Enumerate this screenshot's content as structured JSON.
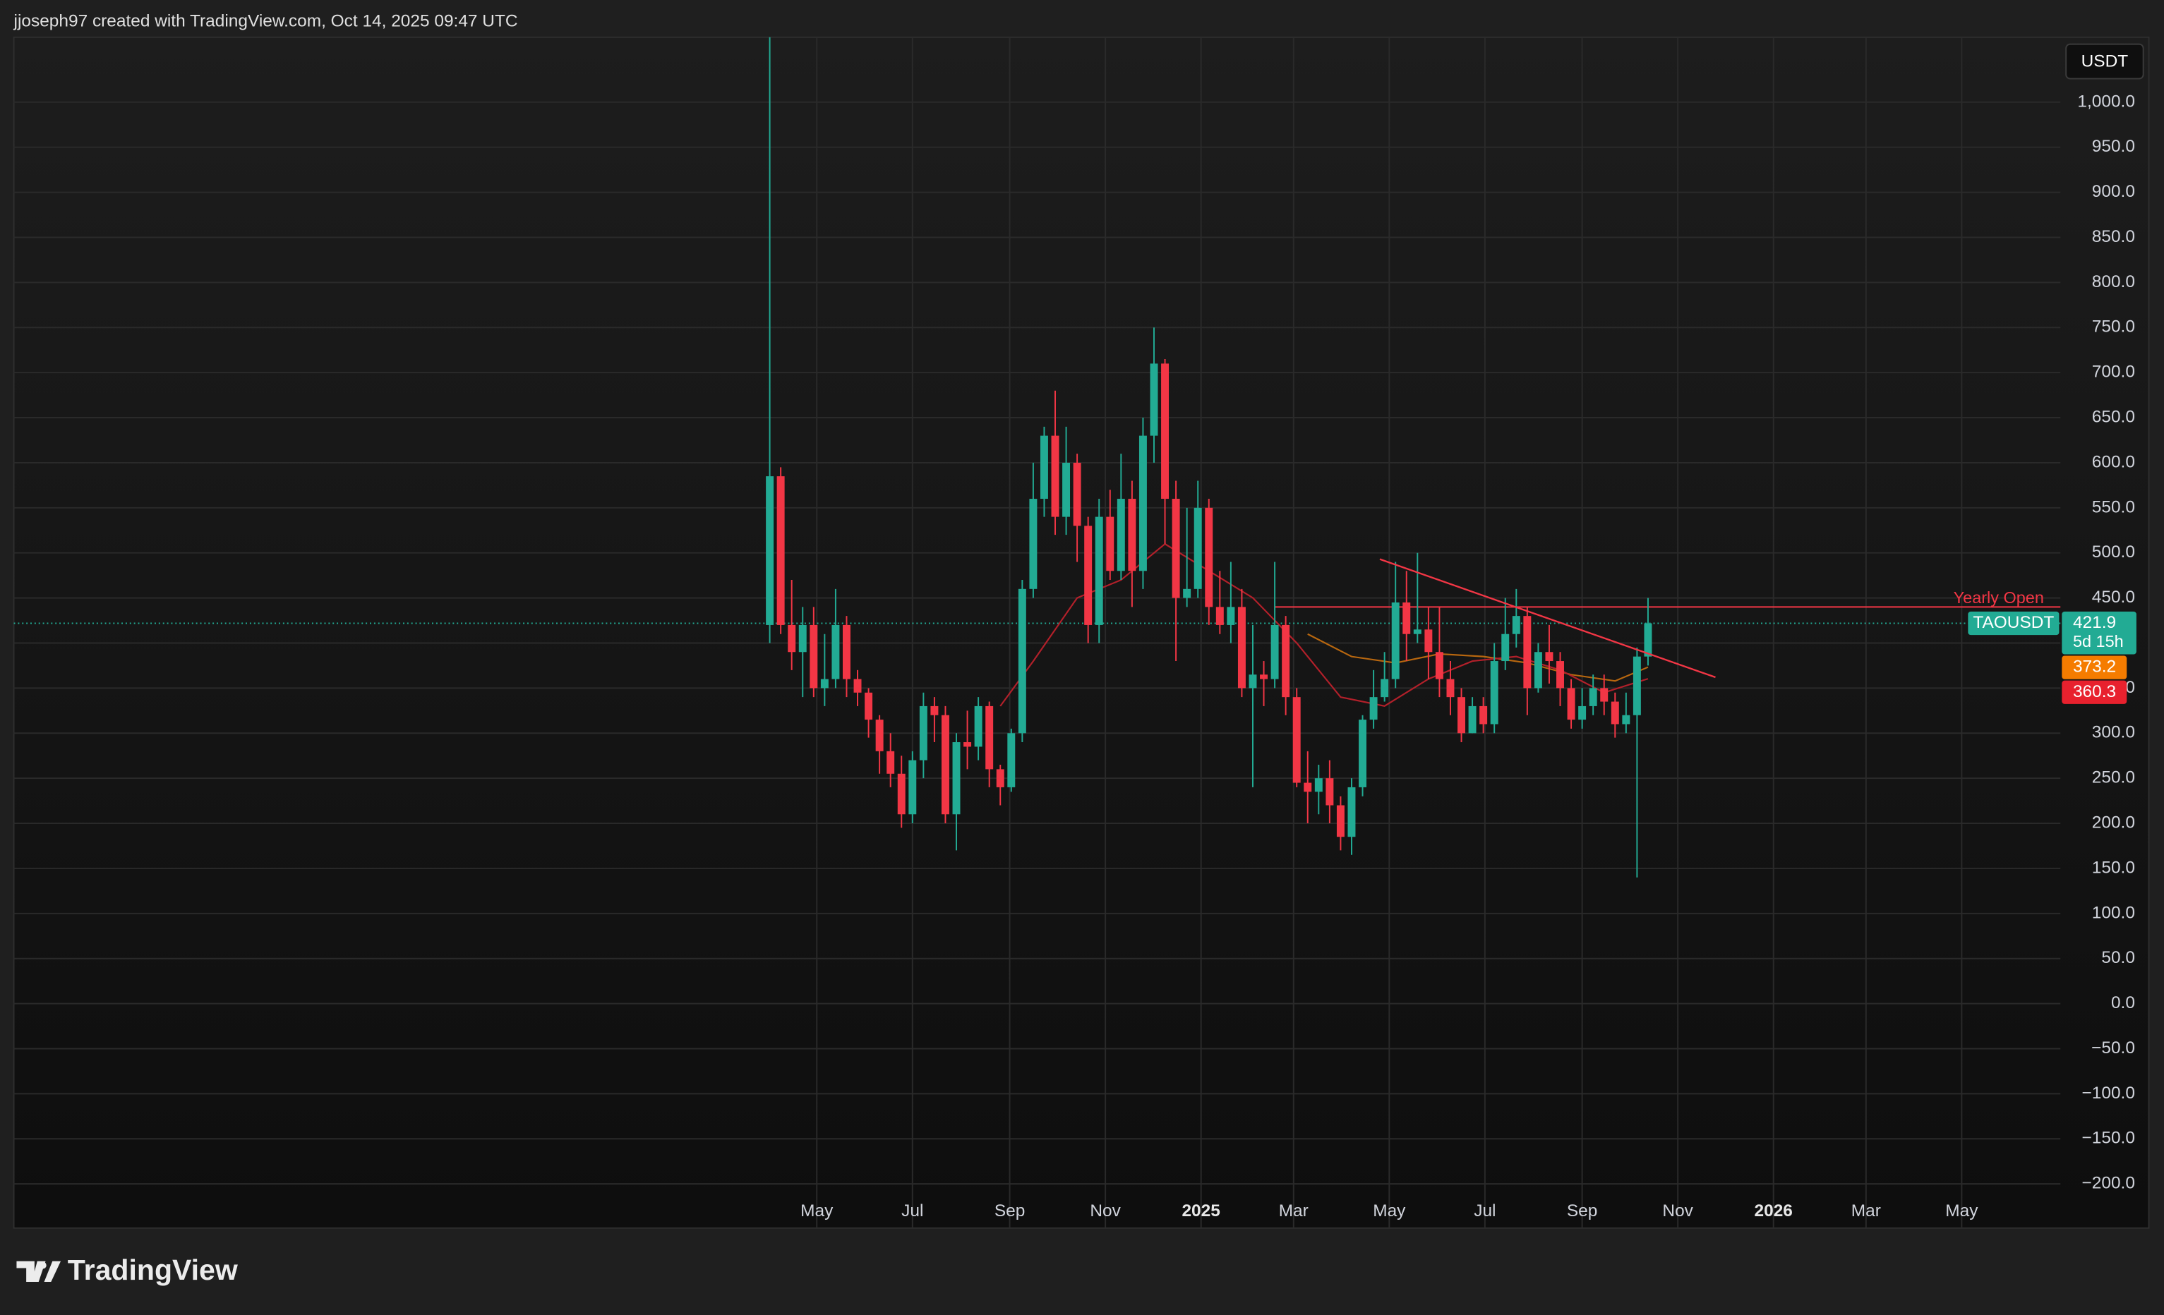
{
  "header": {
    "text": "jjoseph97 created with TradingView.com, Oct 14, 2025 09:47 UTC"
  },
  "footer": {
    "brand": "TradingView"
  },
  "chart_data": {
    "type": "candlestick",
    "symbol": "TAOUSDT",
    "currency": "USDT",
    "countdown": "5d 15h",
    "up_color": "#22ab94",
    "down_color": "#f23645",
    "x": [
      "2024-04-01",
      "2024-04-08",
      "2024-04-15",
      "2024-04-22",
      "2024-04-29",
      "2024-05-06",
      "2024-05-13",
      "2024-05-20",
      "2024-05-27",
      "2024-06-03",
      "2024-06-10",
      "2024-06-17",
      "2024-06-24",
      "2024-07-01",
      "2024-07-08",
      "2024-07-15",
      "2024-07-22",
      "2024-07-29",
      "2024-08-05",
      "2024-08-12",
      "2024-08-19",
      "2024-08-26",
      "2024-09-02",
      "2024-09-09",
      "2024-09-16",
      "2024-09-23",
      "2024-09-30",
      "2024-10-07",
      "2024-10-14",
      "2024-10-21",
      "2024-10-28",
      "2024-11-04",
      "2024-11-11",
      "2024-11-18",
      "2024-11-25",
      "2024-12-02",
      "2024-12-09",
      "2024-12-16",
      "2024-12-23",
      "2024-12-30",
      "2025-01-06",
      "2025-01-13",
      "2025-01-20",
      "2025-01-27",
      "2025-02-03",
      "2025-02-10",
      "2025-02-17",
      "2025-02-24",
      "2025-03-03",
      "2025-03-10",
      "2025-03-17",
      "2025-03-24",
      "2025-03-31",
      "2025-04-07",
      "2025-04-14",
      "2025-04-21",
      "2025-04-28",
      "2025-05-05",
      "2025-05-12",
      "2025-05-19",
      "2025-05-26",
      "2025-06-02",
      "2025-06-09",
      "2025-06-16",
      "2025-06-23",
      "2025-06-30",
      "2025-07-07",
      "2025-07-14",
      "2025-07-21",
      "2025-07-28",
      "2025-08-04",
      "2025-08-11",
      "2025-08-18",
      "2025-08-25",
      "2025-09-01",
      "2025-09-08",
      "2025-09-15",
      "2025-09-22",
      "2025-09-29",
      "2025-10-06",
      "2025-10-13"
    ],
    "open": [
      420,
      585,
      420,
      390,
      420,
      350,
      360,
      420,
      360,
      345,
      315,
      280,
      255,
      210,
      270,
      330,
      320,
      210,
      290,
      285,
      330,
      260,
      240,
      300,
      460,
      560,
      630,
      540,
      600,
      530,
      420,
      540,
      480,
      560,
      480,
      630,
      710,
      560,
      450,
      460,
      550,
      440,
      420,
      440,
      350,
      365,
      360,
      420,
      340,
      245,
      235,
      250,
      220,
      185,
      240,
      315,
      340,
      360,
      445,
      410,
      415,
      390,
      360,
      340,
      300,
      330,
      310,
      380,
      410,
      430,
      350,
      390,
      380,
      350,
      315,
      330,
      350,
      335,
      310,
      320,
      385
    ],
    "high": [
      1100,
      595,
      470,
      440,
      440,
      410,
      460,
      430,
      370,
      350,
      320,
      300,
      275,
      280,
      345,
      340,
      330,
      300,
      325,
      340,
      335,
      265,
      305,
      470,
      600,
      640,
      680,
      640,
      610,
      540,
      560,
      570,
      610,
      580,
      650,
      750,
      715,
      580,
      550,
      580,
      560,
      480,
      490,
      460,
      420,
      380,
      490,
      430,
      350,
      280,
      265,
      270,
      230,
      250,
      320,
      370,
      390,
      490,
      480,
      500,
      440,
      440,
      380,
      350,
      340,
      340,
      400,
      450,
      460,
      440,
      400,
      420,
      390,
      360,
      350,
      365,
      365,
      345,
      345,
      395,
      450
    ],
    "low": [
      400,
      410,
      370,
      340,
      340,
      330,
      350,
      340,
      330,
      295,
      255,
      240,
      195,
      200,
      250,
      290,
      200,
      170,
      260,
      270,
      240,
      220,
      235,
      290,
      450,
      540,
      520,
      520,
      490,
      400,
      400,
      470,
      470,
      440,
      460,
      600,
      510,
      380,
      440,
      450,
      420,
      410,
      400,
      340,
      240,
      330,
      350,
      320,
      240,
      200,
      210,
      200,
      170,
      165,
      230,
      305,
      335,
      350,
      380,
      400,
      360,
      340,
      320,
      290,
      300,
      300,
      300,
      370,
      395,
      320,
      345,
      355,
      330,
      305,
      305,
      320,
      320,
      295,
      300,
      140,
      375
    ],
    "close": [
      585,
      420,
      390,
      420,
      350,
      360,
      420,
      360,
      345,
      315,
      280,
      255,
      210,
      270,
      330,
      320,
      210,
      290,
      285,
      330,
      260,
      240,
      300,
      460,
      560,
      630,
      540,
      600,
      530,
      420,
      540,
      480,
      560,
      480,
      630,
      710,
      560,
      450,
      460,
      550,
      440,
      420,
      440,
      350,
      365,
      360,
      420,
      340,
      245,
      235,
      250,
      220,
      185,
      240,
      315,
      340,
      360,
      445,
      410,
      415,
      390,
      360,
      340,
      300,
      330,
      310,
      380,
      410,
      430,
      350,
      390,
      380,
      350,
      315,
      330,
      350,
      335,
      310,
      320,
      385,
      421.9
    ],
    "overlays": [
      {
        "color": "#f57c00",
        "line_color": "#b8670f",
        "x": [
          "2025-03-10",
          "2025-04-07",
          "2025-05-05",
          "2025-06-02",
          "2025-06-30",
          "2025-07-28",
          "2025-08-25",
          "2025-09-22",
          "2025-10-13"
        ],
        "values": [
          410,
          385,
          378,
          388,
          385,
          378,
          365,
          358,
          373.2
        ]
      },
      {
        "color": "#e8212e",
        "line_color": "#b3202a",
        "x": [
          "2024-08-26",
          "2024-09-16",
          "2024-10-14",
          "2024-11-11",
          "2024-12-09",
          "2025-01-06",
          "2025-02-03",
          "2025-03-03",
          "2025-03-31",
          "2025-04-28",
          "2025-05-26",
          "2025-06-23",
          "2025-07-21",
          "2025-08-18",
          "2025-09-15",
          "2025-10-13"
        ],
        "values": [
          330,
          380,
          450,
          470,
          510,
          480,
          450,
          400,
          340,
          330,
          360,
          380,
          385,
          370,
          345,
          360.3
        ]
      }
    ],
    "yearly_open": {
      "label": "Yearly Open",
      "value": 440,
      "from": "2025-02-17",
      "color": "#f23645"
    },
    "trendline": {
      "x": [
        "2025-04-25",
        "2025-11-25"
      ],
      "values": [
        493,
        362
      ],
      "color": "#f23645"
    },
    "xlim": [
      "2022-12-06",
      "2026-07-03"
    ],
    "xticks": [
      {
        "value": "2024-05-01",
        "label": "May"
      },
      {
        "value": "2024-07-01",
        "label": "Jul"
      },
      {
        "value": "2024-09-01",
        "label": "Sep"
      },
      {
        "value": "2024-11-01",
        "label": "Nov"
      },
      {
        "value": "2025-01-01",
        "label": "2025"
      },
      {
        "value": "2025-03-01",
        "label": "Mar"
      },
      {
        "value": "2025-05-01",
        "label": "May"
      },
      {
        "value": "2025-07-01",
        "label": "Jul"
      },
      {
        "value": "2025-09-01",
        "label": "Sep"
      },
      {
        "value": "2025-11-01",
        "label": "Nov"
      },
      {
        "value": "2026-01-01",
        "label": "2026"
      },
      {
        "value": "2026-03-01",
        "label": "Mar"
      },
      {
        "value": "2026-05-01",
        "label": "May"
      }
    ],
    "ylim": [
      -249,
      1072
    ],
    "yticks": [
      {
        "value": 1000,
        "label": "1,000.0"
      },
      {
        "value": 950,
        "label": "950.0"
      },
      {
        "value": 900,
        "label": "900.0"
      },
      {
        "value": 850,
        "label": "850.0"
      },
      {
        "value": 800,
        "label": "800.0"
      },
      {
        "value": 750,
        "label": "750.0"
      },
      {
        "value": 700,
        "label": "700.0"
      },
      {
        "value": 650,
        "label": "650.0"
      },
      {
        "value": 600,
        "label": "600.0"
      },
      {
        "value": 550,
        "label": "550.0"
      },
      {
        "value": 500,
        "label": "500.0"
      },
      {
        "value": 450,
        "label": "450.0"
      },
      {
        "value": 400,
        "label": "400.0"
      },
      {
        "value": 350,
        "label": "350.0"
      },
      {
        "value": 300,
        "label": "300.0"
      },
      {
        "value": 250,
        "label": "250.0"
      },
      {
        "value": 200,
        "label": "200.0"
      },
      {
        "value": 150,
        "label": "150.0"
      },
      {
        "value": 100,
        "label": "100.0"
      },
      {
        "value": 50,
        "label": "50.0"
      },
      {
        "value": 0,
        "label": "0.0"
      },
      {
        "value": -50,
        "label": "−50.0"
      },
      {
        "value": -100,
        "label": "−100.0"
      },
      {
        "value": -150,
        "label": "−150.0"
      },
      {
        "value": -200,
        "label": "−200.0"
      }
    ],
    "grid": true
  }
}
